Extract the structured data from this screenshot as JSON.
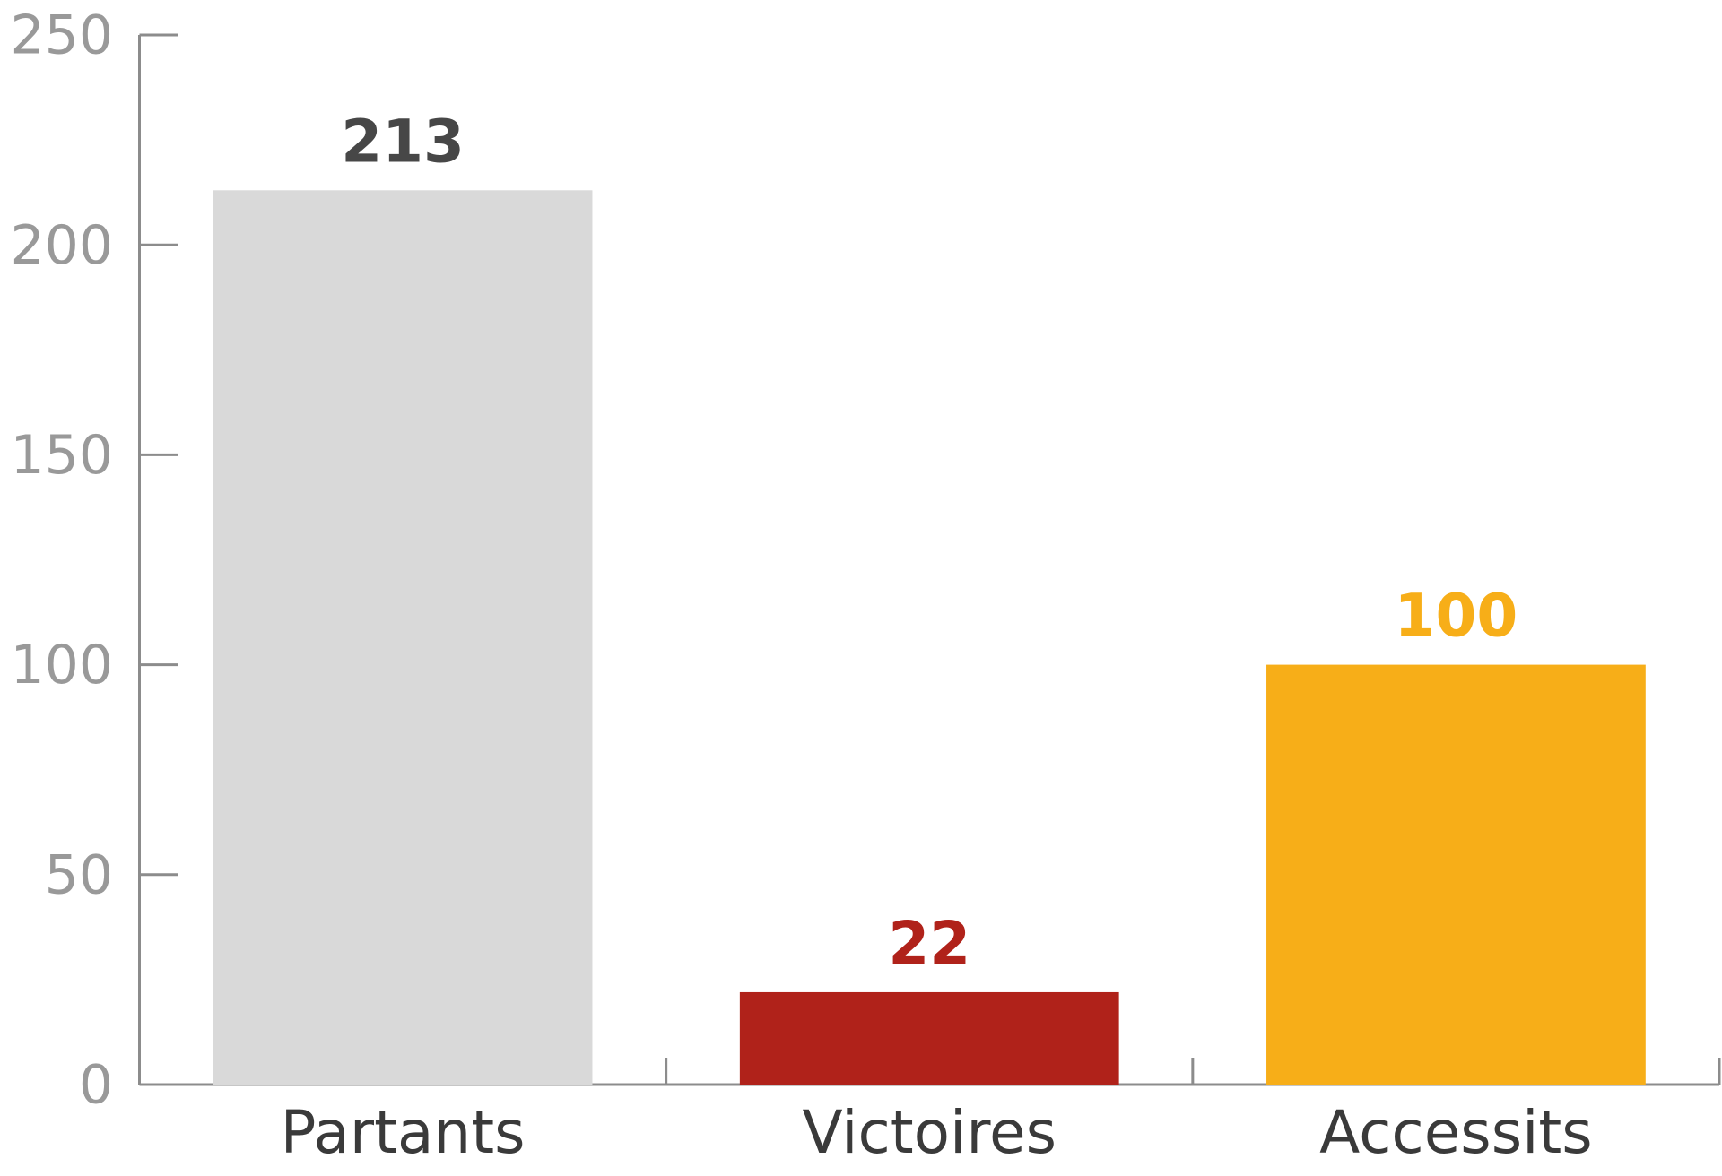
{
  "chart_data": {
    "type": "bar",
    "categories": [
      "Partants",
      "Victoires",
      "Accessits"
    ],
    "values": [
      213,
      22,
      100
    ],
    "colors": [
      "#d9d9d9",
      "#b0221a",
      "#f7ae18"
    ],
    "value_label_colors": [
      "#474747",
      "#b0221a",
      "#f7ae18"
    ],
    "ylim": [
      0,
      250
    ],
    "yticks": [
      0,
      50,
      100,
      150,
      200,
      250
    ]
  }
}
